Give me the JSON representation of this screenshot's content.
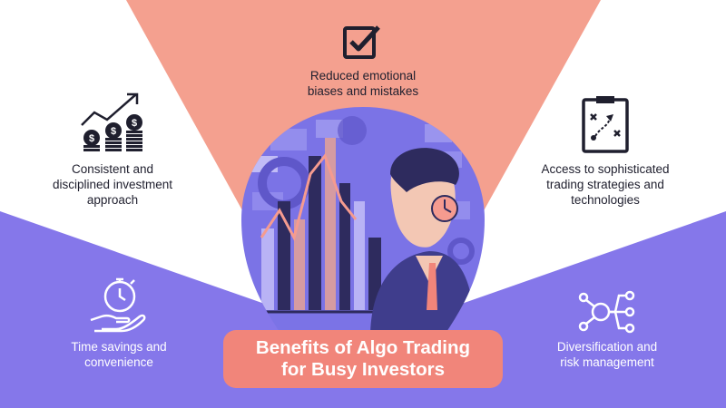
{
  "colors": {
    "wedge": "#f4a08f",
    "lower_band": "#8577ea",
    "circle": "#7b73e6",
    "title_bg": "#f1857a",
    "icon_dark": "#1f1f2e",
    "icon_light": "#ffffff"
  },
  "title": {
    "line1": "Benefits of Algo Trading",
    "line2": "for Busy Investors"
  },
  "benefits": {
    "top": {
      "icon": "checkbox-icon",
      "line1": "Reduced emotional",
      "line2": "biases and mistakes"
    },
    "left_upper": {
      "icon": "growth-coins-icon",
      "line1": "Consistent and",
      "line2": "disciplined investment",
      "line3": "approach"
    },
    "right_upper": {
      "icon": "strategy-clipboard-icon",
      "line1": "Access to sophisticated",
      "line2": "trading strategies and",
      "line3": "technologies"
    },
    "left_lower": {
      "icon": "stopwatch-hand-icon",
      "line1": "Time savings and",
      "line2": "convenience"
    },
    "right_lower": {
      "icon": "network-nodes-icon",
      "line1": "Diversification and",
      "line2": "risk management"
    }
  },
  "illustration": {
    "icon": "stressed-investor-illustration"
  }
}
